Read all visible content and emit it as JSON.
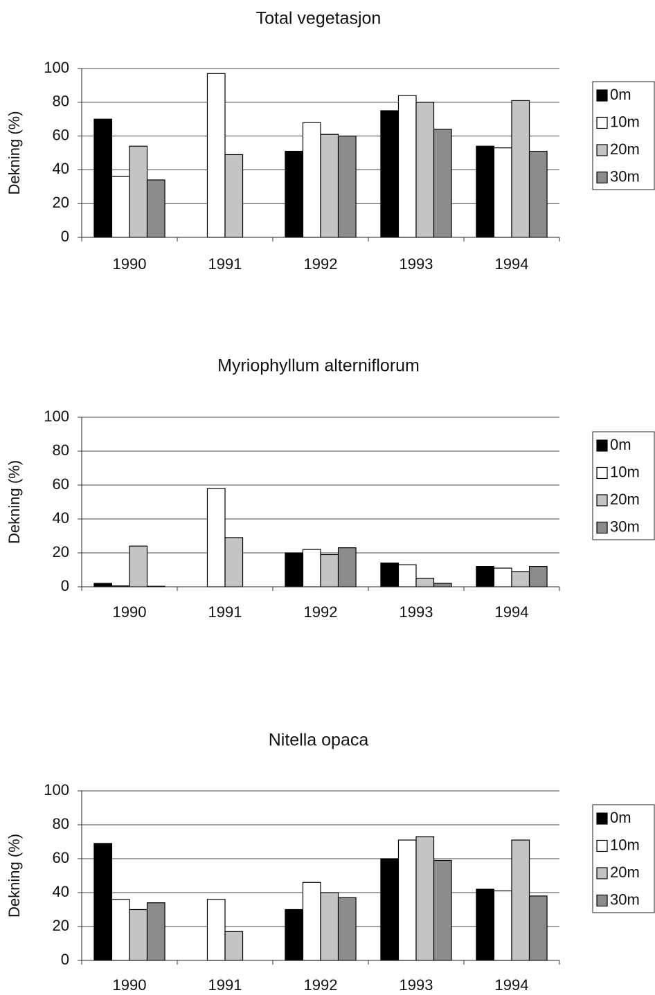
{
  "chart_data": [
    {
      "type": "bar",
      "title": "Total vegetasjon",
      "y_label": "Dekning (%)",
      "categories": [
        "1990",
        "1991",
        "1992",
        "1993",
        "1994"
      ],
      "series": [
        {
          "name": "0m",
          "color": "#000000",
          "values": [
            70,
            null,
            51,
            75,
            54
          ]
        },
        {
          "name": "10m",
          "color": "#ffffff",
          "values": [
            36,
            97,
            68,
            84,
            53
          ]
        },
        {
          "name": "20m",
          "color": "#c4c4c4",
          "values": [
            54,
            49,
            61,
            80,
            81
          ]
        },
        {
          "name": "30m",
          "color": "#8c8c8c",
          "values": [
            34,
            null,
            60,
            64,
            51
          ]
        }
      ],
      "ylim": [
        0,
        100
      ],
      "yticks": [
        0,
        20,
        40,
        60,
        80,
        100
      ],
      "grid": true,
      "legend": "right"
    },
    {
      "type": "bar",
      "title": "Myriophyllum alterniflorum",
      "y_label": "Dekning (%)",
      "categories": [
        "1990",
        "1991",
        "1992",
        "1993",
        "1994"
      ],
      "series": [
        {
          "name": "0m",
          "color": "#000000",
          "values": [
            2,
            null,
            20,
            14,
            12
          ]
        },
        {
          "name": "10m",
          "color": "#ffffff",
          "values": [
            0.5,
            58,
            22,
            13,
            11
          ]
        },
        {
          "name": "20m",
          "color": "#c4c4c4",
          "values": [
            24,
            29,
            19,
            5,
            9
          ]
        },
        {
          "name": "30m",
          "color": "#8c8c8c",
          "values": [
            0.3,
            null,
            23,
            2,
            12
          ]
        }
      ],
      "ylim": [
        0,
        100
      ],
      "yticks": [
        0,
        20,
        40,
        60,
        80,
        100
      ],
      "grid": true,
      "legend": "right"
    },
    {
      "type": "bar",
      "title": "Nitella opaca",
      "y_label": "Dekning (%)",
      "categories": [
        "1990",
        "1991",
        "1992",
        "1993",
        "1994"
      ],
      "series": [
        {
          "name": "0m",
          "color": "#000000",
          "values": [
            69,
            null,
            30,
            60,
            42
          ]
        },
        {
          "name": "10m",
          "color": "#ffffff",
          "values": [
            36,
            36,
            46,
            71,
            41
          ]
        },
        {
          "name": "20m",
          "color": "#c4c4c4",
          "values": [
            30,
            17,
            40,
            73,
            71
          ]
        },
        {
          "name": "30m",
          "color": "#8c8c8c",
          "values": [
            34,
            null,
            37,
            59,
            38
          ]
        }
      ],
      "ylim": [
        0,
        100
      ],
      "yticks": [
        0,
        20,
        40,
        60,
        80,
        100
      ],
      "grid": true,
      "legend": "right"
    }
  ]
}
